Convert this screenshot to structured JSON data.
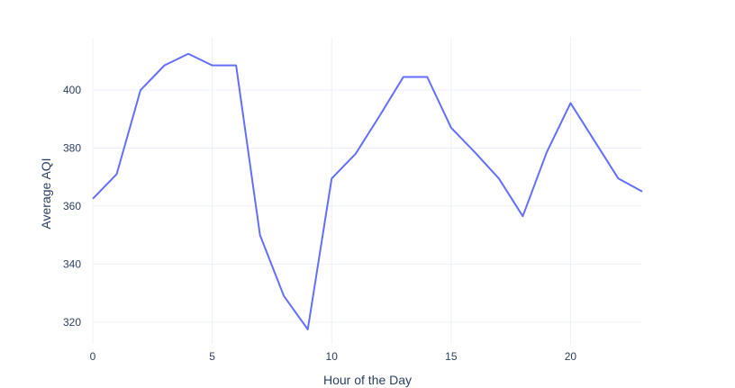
{
  "chart_data": {
    "type": "line",
    "title": "",
    "xlabel": "Hour of the Day",
    "ylabel": "Average AQI",
    "xlim": [
      0,
      23
    ],
    "ylim": [
      312.5,
      418
    ],
    "x_ticks": [
      0,
      5,
      10,
      15,
      20
    ],
    "y_ticks": [
      320,
      340,
      360,
      380,
      400
    ],
    "grid": true,
    "legend": "none",
    "line_color": "#636efa",
    "series": [
      {
        "x": [
          0,
          1,
          2,
          3,
          4,
          5,
          6,
          7,
          8,
          9,
          10,
          11,
          12,
          13,
          14,
          15,
          16,
          17,
          18,
          19,
          20,
          21,
          22,
          23
        ],
        "values": [
          362.5,
          371,
          400,
          408.5,
          412.5,
          408.5,
          408.5,
          350,
          329,
          317.5,
          369.5,
          378,
          391,
          404.5,
          404.5,
          387,
          378.5,
          369.5,
          356.5,
          378.5,
          395.5,
          382.5,
          369.5,
          365
        ]
      }
    ]
  }
}
